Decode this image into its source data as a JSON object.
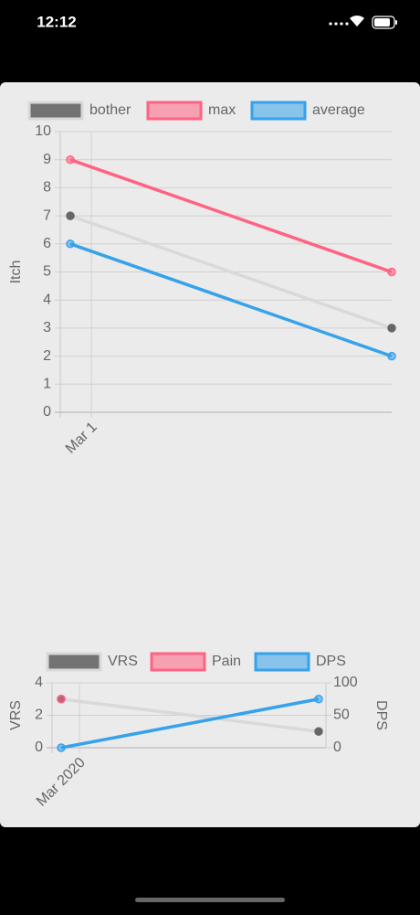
{
  "status_bar": {
    "time": "12:12"
  },
  "chart_data": [
    {
      "type": "line",
      "y_label": "Itch",
      "categories": [
        "Mar 1",
        null
      ],
      "series": [
        {
          "name": "bother",
          "color": "#666666",
          "line_color": "#d9d9d9",
          "values": [
            7,
            3
          ]
        },
        {
          "name": "max",
          "color": "#ff6384",
          "values": [
            9,
            5
          ]
        },
        {
          "name": "average",
          "color": "#36a2eb",
          "values": [
            6,
            2
          ]
        }
      ],
      "ylim": [
        0,
        10
      ],
      "yticks": [
        0,
        1,
        2,
        3,
        4,
        5,
        6,
        7,
        8,
        9,
        10
      ],
      "grid": true
    },
    {
      "type": "line",
      "y_label": "VRS",
      "y2_label": "DPS",
      "categories": [
        "Mar 2020",
        null
      ],
      "series": [
        {
          "name": "VRS",
          "color": "#666666",
          "line_color": "#d9d9d9",
          "values": [
            3,
            1
          ]
        },
        {
          "name": "Pain",
          "color": "#ff6384",
          "values": [
            3,
            null
          ]
        },
        {
          "name": "DPS",
          "color": "#36a2eb",
          "axis": "y2",
          "values": [
            0,
            75
          ]
        }
      ],
      "ylim": [
        0,
        4
      ],
      "yticks": [
        0,
        2,
        4
      ],
      "y2lim": [
        0,
        100
      ],
      "y2ticks": [
        0,
        50,
        100
      ],
      "grid": true
    }
  ]
}
